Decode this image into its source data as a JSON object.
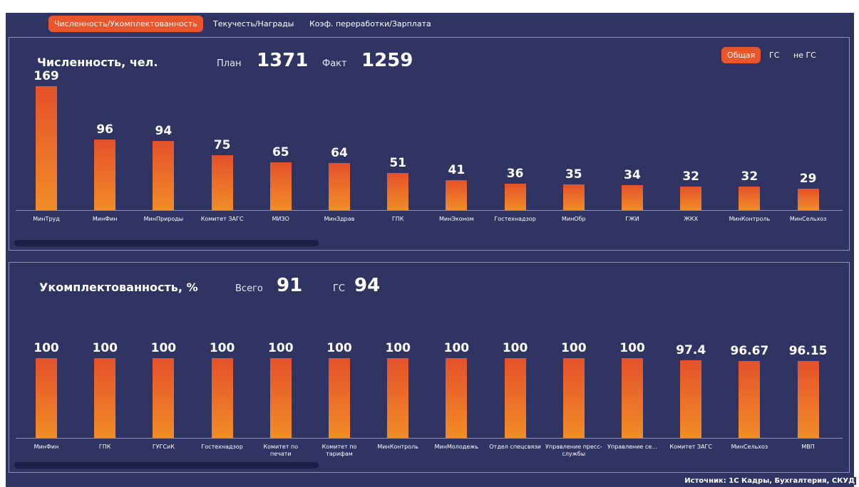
{
  "tabs": [
    "Численность/Укомплектованность",
    "Текучесть/Награды",
    "Коэф. переработки/Зарплата"
  ],
  "toggles": [
    "Общая",
    "ГС",
    "не ГС"
  ],
  "source": "Источник: 1С Кадры, Бухгалтерия, СКУД",
  "chart_data": [
    {
      "type": "bar",
      "title": "Численность, чел.",
      "kpis": [
        {
          "label": "План",
          "value": 1371
        },
        {
          "label": "Факт",
          "value": 1259
        }
      ],
      "categories": [
        "МинТруд",
        "МинФин",
        "МинПрироды",
        "Комитет ЗАГС",
        "МИЗО",
        "МинЗдрав",
        "ГПК",
        "МинЭконом",
        "Гостехнадзор",
        "МинОбр",
        "ГЖИ",
        "ЖКХ",
        "МинКонтроль",
        "МинСельхоз"
      ],
      "values": [
        169,
        96,
        94,
        75,
        65,
        64,
        51,
        41,
        36,
        35,
        34,
        32,
        32,
        29
      ],
      "ylim": [
        0,
        170
      ],
      "color": [
        "#e4512b",
        "#f28c27"
      ]
    },
    {
      "type": "bar",
      "title": "Укомплектованность, %",
      "kpis": [
        {
          "label": "Всего",
          "value": 91
        },
        {
          "label": "ГС",
          "value": 94
        }
      ],
      "categories": [
        "МинФин",
        "ГПК",
        "ГУГСиК",
        "Гостехнадзор",
        "Комитет по печати",
        "Комитет по тарифам",
        "МинКонтроль",
        "МинМолодежь",
        "Отдел спецсвязи",
        "Управление пресс-службы",
        "Управление се...",
        "Комитет ЗАГС",
        "МинСельхоз",
        "МВП"
      ],
      "values": [
        100,
        100,
        100,
        100,
        100,
        100,
        100,
        100,
        100,
        100,
        100,
        97.4,
        96.67,
        96.15
      ],
      "ylim": [
        0,
        100
      ],
      "color": [
        "#e4512b",
        "#f28c27"
      ]
    }
  ]
}
